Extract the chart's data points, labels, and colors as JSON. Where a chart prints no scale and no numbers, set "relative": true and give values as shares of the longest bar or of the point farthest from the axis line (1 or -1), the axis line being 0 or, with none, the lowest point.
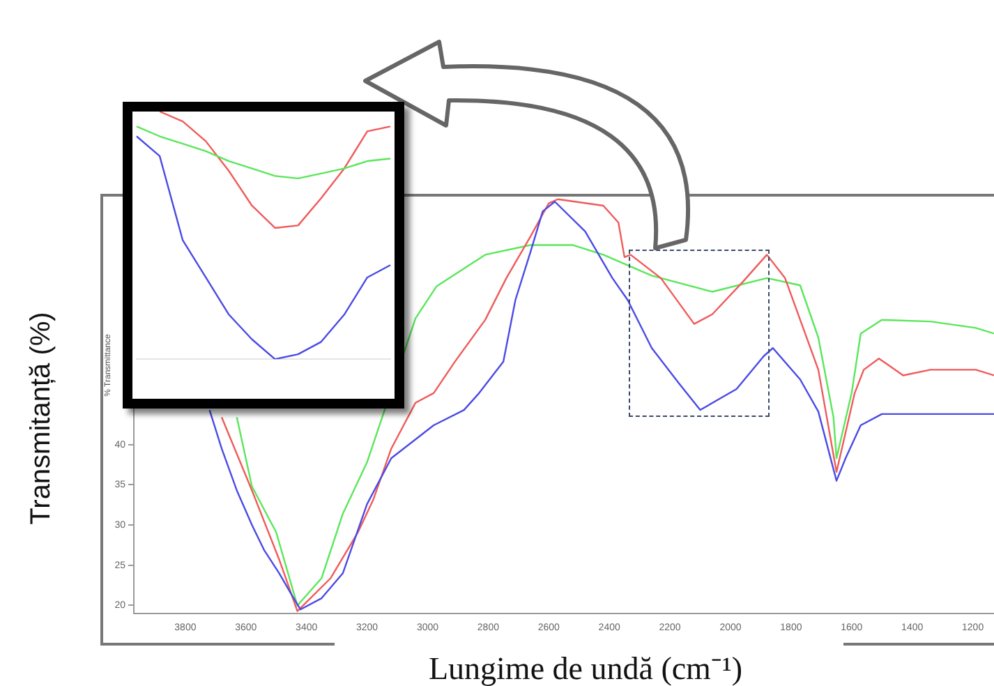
{
  "chart_data": [
    {
      "type": "line",
      "xlabel": "Lungime de undă (cm⁻¹)",
      "ylabel": "Transmitanță (%)",
      "annotations": [
        "% Transmittance"
      ],
      "xlim": [
        3970,
        1130
      ],
      "ylim": [
        19,
        71
      ],
      "xticks": [
        3800,
        3600,
        3400,
        3200,
        3000,
        2800,
        2600,
        2400,
        2200,
        2000,
        1800,
        1600,
        1400,
        1200
      ],
      "yticks": [
        20,
        25,
        30,
        35,
        40
      ],
      "grid": false,
      "legend": false,
      "marker": "none",
      "line_style": "solid",
      "series": [
        {
          "color": "#4a4ae6",
          "x": [
            3720,
            3680,
            3630,
            3580,
            3540,
            3490,
            3450,
            3420,
            3350,
            3280,
            3200,
            3120,
            2980,
            2880,
            2830,
            2750,
            2710,
            2660,
            2620,
            2580,
            2480,
            2390,
            2340,
            2260,
            2170,
            2100,
            1980,
            1890,
            1860,
            1770,
            1710,
            1650,
            1620,
            1570,
            1500,
            1340,
            1130
          ],
          "values": [
            44.3,
            39.5,
            34.3,
            30,
            26.9,
            24,
            21.4,
            19.5,
            20.9,
            24,
            32.6,
            38.3,
            42.4,
            44.3,
            46.4,
            50.3,
            58,
            64,
            69,
            70.2,
            66.5,
            60.7,
            58,
            52,
            47.6,
            44.3,
            46.9,
            51,
            52,
            48.1,
            44.1,
            35.5,
            38.3,
            42.4,
            43.8,
            43.8,
            43.8
          ]
        },
        {
          "color": "#f05a5a",
          "x": [
            3680,
            3580,
            3490,
            3430,
            3320,
            3230,
            3180,
            3120,
            3040,
            2980,
            2910,
            2810,
            2740,
            2660,
            2600,
            2570,
            2420,
            2370,
            2350,
            2330,
            2230,
            2120,
            2060,
            1960,
            1880,
            1820,
            1710,
            1650,
            1590,
            1560,
            1510,
            1430,
            1340,
            1190,
            1130
          ],
          "values": [
            43.4,
            34.3,
            25.7,
            19.3,
            23.4,
            29.1,
            33.1,
            39.5,
            45.2,
            46.4,
            50.3,
            55.5,
            60.7,
            65.9,
            70,
            70.5,
            69.7,
            67.6,
            63.3,
            63.6,
            60.7,
            55,
            56.2,
            60.2,
            63.6,
            60.7,
            49.3,
            36.6,
            46.4,
            49.3,
            50.7,
            48.6,
            49.3,
            49.3,
            48.6
          ]
        },
        {
          "color": "#5ae65a",
          "x": [
            3630,
            3580,
            3500,
            3430,
            3350,
            3280,
            3200,
            3040,
            2970,
            2810,
            2660,
            2520,
            2420,
            2260,
            2060,
            1880,
            1770,
            1710,
            1660,
            1650,
            1600,
            1570,
            1500,
            1340,
            1190,
            1130
          ],
          "values": [
            43.4,
            34.8,
            29.1,
            20,
            23.4,
            31.4,
            37.8,
            55.7,
            59.7,
            63.6,
            64.8,
            64.8,
            63.6,
            61,
            59,
            60.7,
            59.8,
            53.3,
            43.4,
            38.3,
            46.4,
            53.8,
            55.5,
            55.3,
            54.5,
            53.8
          ]
        }
      ]
    },
    {
      "type": "line",
      "relative": true,
      "legend": false,
      "marker": "none",
      "line_style": "solid",
      "categories": [
        null,
        null,
        null,
        null,
        null,
        null,
        null,
        null,
        null,
        null,
        null,
        null
      ],
      "series": [
        {
          "color": "#5ae65a",
          "values": [
            0.94,
            0.9,
            0.87,
            0.84,
            0.8,
            0.77,
            0.74,
            0.73,
            0.75,
            0.77,
            0.8,
            0.81
          ]
        },
        {
          "color": "#f05a5a",
          "values": [
            null,
            1,
            0.96,
            0.88,
            0.76,
            0.62,
            0.53,
            0.54,
            0.65,
            0.77,
            0.92,
            0.94
          ]
        },
        {
          "color": "#4a4ae6",
          "values": [
            0.9,
            0.82,
            0.48,
            0.33,
            0.18,
            0.08,
            0,
            0.02,
            0.07,
            0.18,
            0.33,
            0.38
          ]
        }
      ]
    }
  ]
}
